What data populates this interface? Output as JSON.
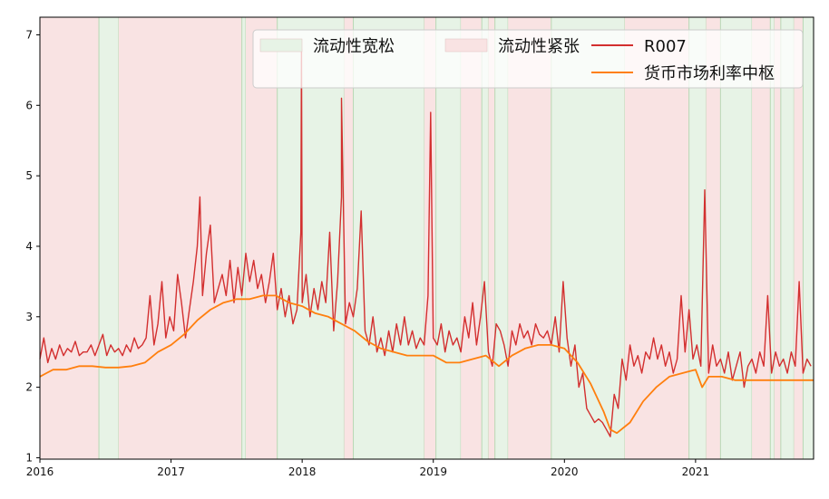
{
  "chart_data": {
    "type": "line",
    "colors": {
      "loose": "#e7f3e6",
      "tight": "#f9e3e3",
      "r007": "#d32f2f",
      "center": "#ff7f0e"
    },
    "legend": {
      "placement": "top-right",
      "entries": [
        {
          "label": "流动性宽松",
          "kind": "patch",
          "color_key": "loose"
        },
        {
          "label": "流动性紧张",
          "kind": "patch",
          "color_key": "tight"
        },
        {
          "label": "R007",
          "kind": "line",
          "color_key": "r007"
        },
        {
          "label": "货币市场利率中枢",
          "kind": "line",
          "color_key": "center"
        }
      ]
    },
    "xlim": [
      2016.0,
      2021.9
    ],
    "ylim": [
      0.98,
      7.25
    ],
    "x_ticks": [
      {
        "value": 2016,
        "label": "2016"
      },
      {
        "value": 2017,
        "label": "2017"
      },
      {
        "value": 2018,
        "label": "2018"
      },
      {
        "value": 2019,
        "label": "2019"
      },
      {
        "value": 2020,
        "label": "2020"
      },
      {
        "value": 2021,
        "label": "2021"
      }
    ],
    "y_ticks": [
      {
        "value": 1,
        "label": "1"
      },
      {
        "value": 2,
        "label": "2"
      },
      {
        "value": 3,
        "label": "3"
      },
      {
        "value": 4,
        "label": "4"
      },
      {
        "value": 5,
        "label": "5"
      },
      {
        "value": 6,
        "label": "6"
      },
      {
        "value": 7,
        "label": "7"
      }
    ],
    "grid": false,
    "regimes": [
      {
        "start": 2016.0,
        "end": 2016.45,
        "state": "tight"
      },
      {
        "start": 2016.45,
        "end": 2016.6,
        "state": "loose"
      },
      {
        "start": 2016.6,
        "end": 2017.54,
        "state": "tight"
      },
      {
        "start": 2017.54,
        "end": 2017.57,
        "state": "loose"
      },
      {
        "start": 2017.57,
        "end": 2017.81,
        "state": "tight"
      },
      {
        "start": 2017.81,
        "end": 2018.32,
        "state": "loose"
      },
      {
        "start": 2018.32,
        "end": 2018.39,
        "state": "tight"
      },
      {
        "start": 2018.39,
        "end": 2018.93,
        "state": "loose"
      },
      {
        "start": 2018.93,
        "end": 2019.02,
        "state": "tight"
      },
      {
        "start": 2019.02,
        "end": 2019.21,
        "state": "loose"
      },
      {
        "start": 2019.21,
        "end": 2019.37,
        "state": "tight"
      },
      {
        "start": 2019.37,
        "end": 2019.42,
        "state": "loose"
      },
      {
        "start": 2019.42,
        "end": 2019.47,
        "state": "tight"
      },
      {
        "start": 2019.47,
        "end": 2019.57,
        "state": "loose"
      },
      {
        "start": 2019.57,
        "end": 2019.9,
        "state": "tight"
      },
      {
        "start": 2019.9,
        "end": 2020.46,
        "state": "loose"
      },
      {
        "start": 2020.46,
        "end": 2020.95,
        "state": "tight"
      },
      {
        "start": 2020.95,
        "end": 2021.08,
        "state": "loose"
      },
      {
        "start": 2021.08,
        "end": 2021.19,
        "state": "tight"
      },
      {
        "start": 2021.19,
        "end": 2021.43,
        "state": "loose"
      },
      {
        "start": 2021.43,
        "end": 2021.57,
        "state": "tight"
      },
      {
        "start": 2021.57,
        "end": 2021.6,
        "state": "loose"
      },
      {
        "start": 2021.6,
        "end": 2021.65,
        "state": "tight"
      },
      {
        "start": 2021.65,
        "end": 2021.75,
        "state": "loose"
      },
      {
        "start": 2021.75,
        "end": 2021.82,
        "state": "tight"
      },
      {
        "start": 2021.82,
        "end": 2021.9,
        "state": "loose"
      }
    ],
    "series": [
      {
        "name": "R007",
        "color_key": "r007",
        "x": [
          2016.0,
          2016.03,
          2016.06,
          2016.09,
          2016.12,
          2016.15,
          2016.18,
          2016.21,
          2016.24,
          2016.27,
          2016.3,
          2016.33,
          2016.36,
          2016.39,
          2016.42,
          2016.45,
          2016.48,
          2016.51,
          2016.54,
          2016.57,
          2016.6,
          2016.63,
          2016.66,
          2016.69,
          2016.72,
          2016.75,
          2016.78,
          2016.81,
          2016.84,
          2016.87,
          2016.9,
          2016.93,
          2016.96,
          2016.99,
          2017.02,
          2017.05,
          2017.08,
          2017.11,
          2017.14,
          2017.17,
          2017.2,
          2017.22,
          2017.24,
          2017.27,
          2017.3,
          2017.33,
          2017.36,
          2017.39,
          2017.42,
          2017.45,
          2017.48,
          2017.51,
          2017.54,
          2017.57,
          2017.6,
          2017.63,
          2017.66,
          2017.69,
          2017.72,
          2017.75,
          2017.78,
          2017.81,
          2017.84,
          2017.87,
          2017.9,
          2017.93,
          2017.96,
          2017.99,
          2017.995,
          2018.0,
          2018.03,
          2018.06,
          2018.09,
          2018.12,
          2018.15,
          2018.18,
          2018.21,
          2018.24,
          2018.27,
          2018.3,
          2018.3,
          2018.33,
          2018.36,
          2018.39,
          2018.42,
          2018.45,
          2018.48,
          2018.51,
          2018.54,
          2018.57,
          2018.6,
          2018.63,
          2018.66,
          2018.69,
          2018.72,
          2018.75,
          2018.78,
          2018.81,
          2018.84,
          2018.87,
          2018.9,
          2018.93,
          2018.96,
          2018.98,
          2019.0,
          2019.03,
          2019.06,
          2019.09,
          2019.12,
          2019.15,
          2019.18,
          2019.21,
          2019.24,
          2019.27,
          2019.3,
          2019.33,
          2019.36,
          2019.39,
          2019.42,
          2019.45,
          2019.48,
          2019.51,
          2019.54,
          2019.57,
          2019.6,
          2019.63,
          2019.66,
          2019.69,
          2019.72,
          2019.75,
          2019.78,
          2019.81,
          2019.84,
          2019.87,
          2019.9,
          2019.93,
          2019.96,
          2019.99,
          2020.02,
          2020.05,
          2020.08,
          2020.11,
          2020.14,
          2020.17,
          2020.2,
          2020.23,
          2020.26,
          2020.29,
          2020.32,
          2020.35,
          2020.38,
          2020.41,
          2020.44,
          2020.47,
          2020.5,
          2020.53,
          2020.56,
          2020.59,
          2020.62,
          2020.65,
          2020.68,
          2020.71,
          2020.74,
          2020.77,
          2020.8,
          2020.83,
          2020.86,
          2020.89,
          2020.92,
          2020.95,
          2020.98,
          2021.01,
          2021.04,
          2021.07,
          2021.1,
          2021.13,
          2021.16,
          2021.19,
          2021.22,
          2021.25,
          2021.28,
          2021.31,
          2021.34,
          2021.37,
          2021.4,
          2021.43,
          2021.46,
          2021.49,
          2021.52,
          2021.55,
          2021.58,
          2021.61,
          2021.64,
          2021.67,
          2021.7,
          2021.73,
          2021.76,
          2021.79,
          2021.82,
          2021.85,
          2021.88
        ],
        "y": [
          2.4,
          2.7,
          2.35,
          2.55,
          2.4,
          2.6,
          2.45,
          2.55,
          2.5,
          2.65,
          2.45,
          2.5,
          2.5,
          2.6,
          2.45,
          2.6,
          2.75,
          2.45,
          2.6,
          2.5,
          2.55,
          2.45,
          2.6,
          2.5,
          2.7,
          2.55,
          2.6,
          2.7,
          3.3,
          2.6,
          2.9,
          3.5,
          2.7,
          3.0,
          2.8,
          3.6,
          3.2,
          2.7,
          3.1,
          3.5,
          4.0,
          4.7,
          3.3,
          3.9,
          4.3,
          3.2,
          3.4,
          3.6,
          3.3,
          3.8,
          3.2,
          3.7,
          3.3,
          3.9,
          3.5,
          3.8,
          3.4,
          3.6,
          3.2,
          3.5,
          3.9,
          3.1,
          3.4,
          3.0,
          3.3,
          2.9,
          3.1,
          4.2,
          6.8,
          3.2,
          3.6,
          3.0,
          3.4,
          3.1,
          3.5,
          3.2,
          4.2,
          2.8,
          3.5,
          4.7,
          6.1,
          2.9,
          3.2,
          3.0,
          3.4,
          4.5,
          2.8,
          2.6,
          3.0,
          2.5,
          2.7,
          2.45,
          2.8,
          2.5,
          2.9,
          2.6,
          3.0,
          2.6,
          2.8,
          2.55,
          2.7,
          2.6,
          3.3,
          5.9,
          2.7,
          2.6,
          2.9,
          2.5,
          2.8,
          2.6,
          2.7,
          2.5,
          3.0,
          2.7,
          3.2,
          2.6,
          3.0,
          3.5,
          2.5,
          2.3,
          2.9,
          2.8,
          2.6,
          2.3,
          2.8,
          2.6,
          2.9,
          2.7,
          2.8,
          2.6,
          2.9,
          2.75,
          2.7,
          2.8,
          2.6,
          3.0,
          2.5,
          3.5,
          2.7,
          2.3,
          2.6,
          2.0,
          2.2,
          1.7,
          1.6,
          1.5,
          1.55,
          1.5,
          1.4,
          1.3,
          1.9,
          1.7,
          2.4,
          2.1,
          2.6,
          2.3,
          2.45,
          2.2,
          2.5,
          2.4,
          2.7,
          2.4,
          2.6,
          2.3,
          2.5,
          2.2,
          2.4,
          3.3,
          2.5,
          3.1,
          2.4,
          2.6,
          2.3,
          4.8,
          2.2,
          2.6,
          2.3,
          2.4,
          2.2,
          2.5,
          2.1,
          2.3,
          2.5,
          2.0,
          2.3,
          2.4,
          2.2,
          2.5,
          2.3,
          3.3,
          2.2,
          2.5,
          2.3,
          2.4,
          2.2,
          2.5,
          2.3,
          3.5,
          2.2,
          2.4,
          2.3
        ]
      },
      {
        "name": "货币市场利率中枢",
        "color_key": "center",
        "x": [
          2016.0,
          2016.05,
          2016.1,
          2016.2,
          2016.3,
          2016.4,
          2016.5,
          2016.6,
          2016.7,
          2016.8,
          2016.9,
          2017.0,
          2017.1,
          2017.2,
          2017.3,
          2017.4,
          2017.5,
          2017.6,
          2017.7,
          2017.8,
          2017.9,
          2018.0,
          2018.1,
          2018.2,
          2018.3,
          2018.4,
          2018.5,
          2018.6,
          2018.7,
          2018.8,
          2018.9,
          2019.0,
          2019.1,
          2019.2,
          2019.3,
          2019.4,
          2019.5,
          2019.6,
          2019.7,
          2019.8,
          2019.9,
          2020.0,
          2020.1,
          2020.2,
          2020.3,
          2020.35,
          2020.4,
          2020.5,
          2020.6,
          2020.7,
          2020.8,
          2020.9,
          2021.0,
          2021.05,
          2021.1,
          2021.2,
          2021.3,
          2021.4,
          2021.5,
          2021.6,
          2021.7,
          2021.8,
          2021.9
        ],
        "y": [
          2.15,
          2.2,
          2.25,
          2.25,
          2.3,
          2.3,
          2.28,
          2.28,
          2.3,
          2.35,
          2.5,
          2.6,
          2.75,
          2.95,
          3.1,
          3.2,
          3.25,
          3.25,
          3.3,
          3.3,
          3.2,
          3.15,
          3.05,
          3.0,
          2.9,
          2.8,
          2.65,
          2.55,
          2.5,
          2.45,
          2.45,
          2.45,
          2.35,
          2.35,
          2.4,
          2.45,
          2.3,
          2.45,
          2.55,
          2.6,
          2.6,
          2.55,
          2.35,
          2.05,
          1.65,
          1.4,
          1.35,
          1.5,
          1.8,
          2.0,
          2.15,
          2.2,
          2.25,
          2.0,
          2.15,
          2.15,
          2.1,
          2.1,
          2.1,
          2.1,
          2.1,
          2.1,
          2.1
        ]
      }
    ]
  }
}
